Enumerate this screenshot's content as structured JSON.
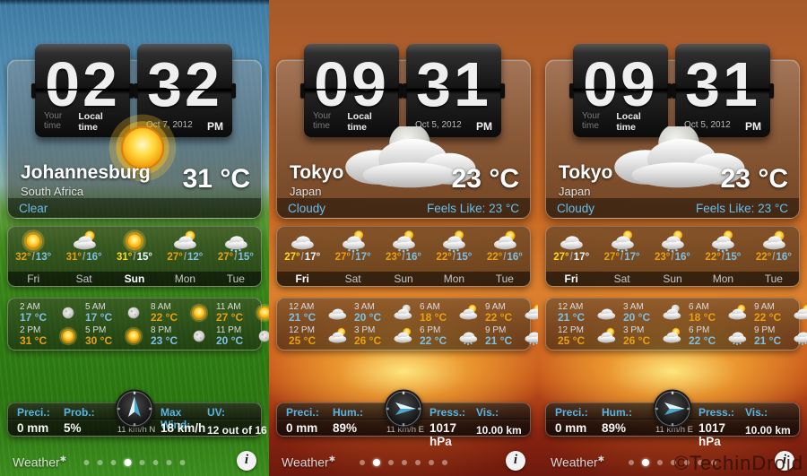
{
  "watermark": "©TechinDroid",
  "panels": [
    {
      "theme": "grass",
      "clock": {
        "hour": "02",
        "minute": "32",
        "tab_your": "Your time",
        "tab_local": "Local time",
        "date": "Oct 7, 2012",
        "meridiem": "PM"
      },
      "location": {
        "city": "Johannesburg",
        "country": "South Africa",
        "temp": "31 °C",
        "condition": "Clear",
        "feels": ""
      },
      "condition_icon": "sun",
      "forecast": [
        {
          "day": "Fri",
          "high": "32°",
          "low": "13°",
          "icon": "sun",
          "selected": false
        },
        {
          "day": "Sat",
          "high": "31°",
          "low": "16°",
          "icon": "cloud-sun",
          "selected": false
        },
        {
          "day": "Sun",
          "high": "31°",
          "low": "15°",
          "icon": "sun",
          "selected": true
        },
        {
          "day": "Mon",
          "high": "27°",
          "low": "12°",
          "icon": "cloud-sun",
          "selected": false
        },
        {
          "day": "Tue",
          "high": "27°",
          "low": "15°",
          "icon": "rain-cloud",
          "selected": false
        }
      ],
      "hourly": [
        [
          {
            "time": "2 AM",
            "temp": "17 °C",
            "warm": false,
            "icon": "moon"
          },
          {
            "time": "5 AM",
            "temp": "17 °C",
            "warm": false,
            "icon": "moon"
          },
          {
            "time": "8 AM",
            "temp": "22 °C",
            "warm": true,
            "icon": "sun"
          },
          {
            "time": "11 AM",
            "temp": "27 °C",
            "warm": true,
            "icon": "sun"
          }
        ],
        [
          {
            "time": "2 PM",
            "temp": "31 °C",
            "warm": true,
            "icon": "sun"
          },
          {
            "time": "5 PM",
            "temp": "30 °C",
            "warm": true,
            "icon": "sun"
          },
          {
            "time": "8 PM",
            "temp": "23 °C",
            "warm": false,
            "icon": "moon"
          },
          {
            "time": "11 PM",
            "temp": "20 °C",
            "warm": false,
            "icon": "moon"
          }
        ]
      ],
      "stats": {
        "l1": "Preci.:",
        "l2": "Prob.:",
        "l3": "Max Wind:",
        "l4": "UV:",
        "v1": "0 mm",
        "v2": "5%",
        "v3": "18 km/h",
        "v4": "12 out of 16",
        "wind": "11 km/h N",
        "dir": "N"
      },
      "toolbar": {
        "app": "Weather",
        "logo_mark": "✱",
        "dots": 8,
        "active_dot": 3,
        "info": "i"
      }
    },
    {
      "theme": "sunset",
      "clock": {
        "hour": "09",
        "minute": "31",
        "tab_your": "Your time",
        "tab_local": "Local time",
        "date": "Oct 5, 2012",
        "meridiem": "PM"
      },
      "location": {
        "city": "Tokyo",
        "country": "Japan",
        "temp": "23 °C",
        "condition": "Cloudy",
        "feels": "Feels Like: 23 °C"
      },
      "condition_icon": "moon-cloud",
      "forecast": [
        {
          "day": "Fri",
          "high": "27°",
          "low": "17°",
          "icon": "cloud",
          "selected": true
        },
        {
          "day": "Sat",
          "high": "27°",
          "low": "17°",
          "icon": "rain-sun",
          "selected": false
        },
        {
          "day": "Sun",
          "high": "23°",
          "low": "16°",
          "icon": "rain-sun",
          "selected": false
        },
        {
          "day": "Mon",
          "high": "22°",
          "low": "15°",
          "icon": "rain-sun",
          "selected": false
        },
        {
          "day": "Tue",
          "high": "22°",
          "low": "16°",
          "icon": "cloud-sun",
          "selected": false
        }
      ],
      "hourly": [
        [
          {
            "time": "12 AM",
            "temp": "21 °C",
            "warm": false,
            "icon": "cloud"
          },
          {
            "time": "3 AM",
            "temp": "20 °C",
            "warm": false,
            "icon": "moon-cloud"
          },
          {
            "time": "6 AM",
            "temp": "18 °C",
            "warm": true,
            "icon": "cloud-sun"
          },
          {
            "time": "9 AM",
            "temp": "22 °C",
            "warm": true,
            "icon": "cloud-sun"
          }
        ],
        [
          {
            "time": "12 PM",
            "temp": "25 °C",
            "warm": true,
            "icon": "cloud-sun"
          },
          {
            "time": "3 PM",
            "temp": "26 °C",
            "warm": true,
            "icon": "cloud-sun"
          },
          {
            "time": "6 PM",
            "temp": "22 °C",
            "warm": false,
            "icon": "rain-cloud"
          },
          {
            "time": "9 PM",
            "temp": "21 °C",
            "warm": false,
            "icon": "rain-cloud"
          }
        ]
      ],
      "stats": {
        "l1": "Preci.:",
        "l2": "Hum.:",
        "l3": "Press.:",
        "l4": "Vis.:",
        "v1": "0 mm",
        "v2": "89%",
        "v3": "1017 hPa",
        "v4": "10.00 km",
        "wind": "11 km/h E",
        "dir": "E"
      },
      "toolbar": {
        "app": "Weather",
        "logo_mark": "✱",
        "dots": 7,
        "active_dot": 1,
        "info": "i"
      }
    },
    {
      "theme": "sunset",
      "clock": {
        "hour": "09",
        "minute": "31",
        "tab_your": "Your time",
        "tab_local": "Local time",
        "date": "Oct 5, 2012",
        "meridiem": "PM"
      },
      "location": {
        "city": "Tokyo",
        "country": "Japan",
        "temp": "23 °C",
        "condition": "Cloudy",
        "feels": "Feels Like: 23 °C"
      },
      "condition_icon": "moon-cloud",
      "forecast": [
        {
          "day": "Fri",
          "high": "27°",
          "low": "17°",
          "icon": "cloud",
          "selected": true
        },
        {
          "day": "Sat",
          "high": "27°",
          "low": "17°",
          "icon": "rain-sun",
          "selected": false
        },
        {
          "day": "Sun",
          "high": "23°",
          "low": "16°",
          "icon": "rain-sun",
          "selected": false
        },
        {
          "day": "Mon",
          "high": "22°",
          "low": "15°",
          "icon": "rain-sun",
          "selected": false
        },
        {
          "day": "Tue",
          "high": "22°",
          "low": "16°",
          "icon": "cloud-sun",
          "selected": false
        }
      ],
      "hourly": [
        [
          {
            "time": "12 AM",
            "temp": "21 °C",
            "warm": false,
            "icon": "cloud"
          },
          {
            "time": "3 AM",
            "temp": "20 °C",
            "warm": false,
            "icon": "moon-cloud"
          },
          {
            "time": "6 AM",
            "temp": "18 °C",
            "warm": true,
            "icon": "cloud-sun"
          },
          {
            "time": "9 AM",
            "temp": "22 °C",
            "warm": true,
            "icon": "cloud-sun"
          }
        ],
        [
          {
            "time": "12 PM",
            "temp": "25 °C",
            "warm": true,
            "icon": "cloud-sun"
          },
          {
            "time": "3 PM",
            "temp": "26 °C",
            "warm": true,
            "icon": "cloud-sun"
          },
          {
            "time": "6 PM",
            "temp": "22 °C",
            "warm": false,
            "icon": "rain-cloud"
          },
          {
            "time": "9 PM",
            "temp": "21 °C",
            "warm": false,
            "icon": "rain-cloud"
          }
        ]
      ],
      "stats": {
        "l1": "Preci.:",
        "l2": "Hum.:",
        "l3": "Press.:",
        "l4": "Vis.:",
        "v1": "0 mm",
        "v2": "89%",
        "v3": "1017 hPa",
        "v4": "10.00 km",
        "wind": "11 km/h E",
        "dir": "E"
      },
      "toolbar": {
        "app": "Weather",
        "logo_mark": "✱",
        "dots": 7,
        "active_dot": 1,
        "info": "i"
      }
    }
  ]
}
